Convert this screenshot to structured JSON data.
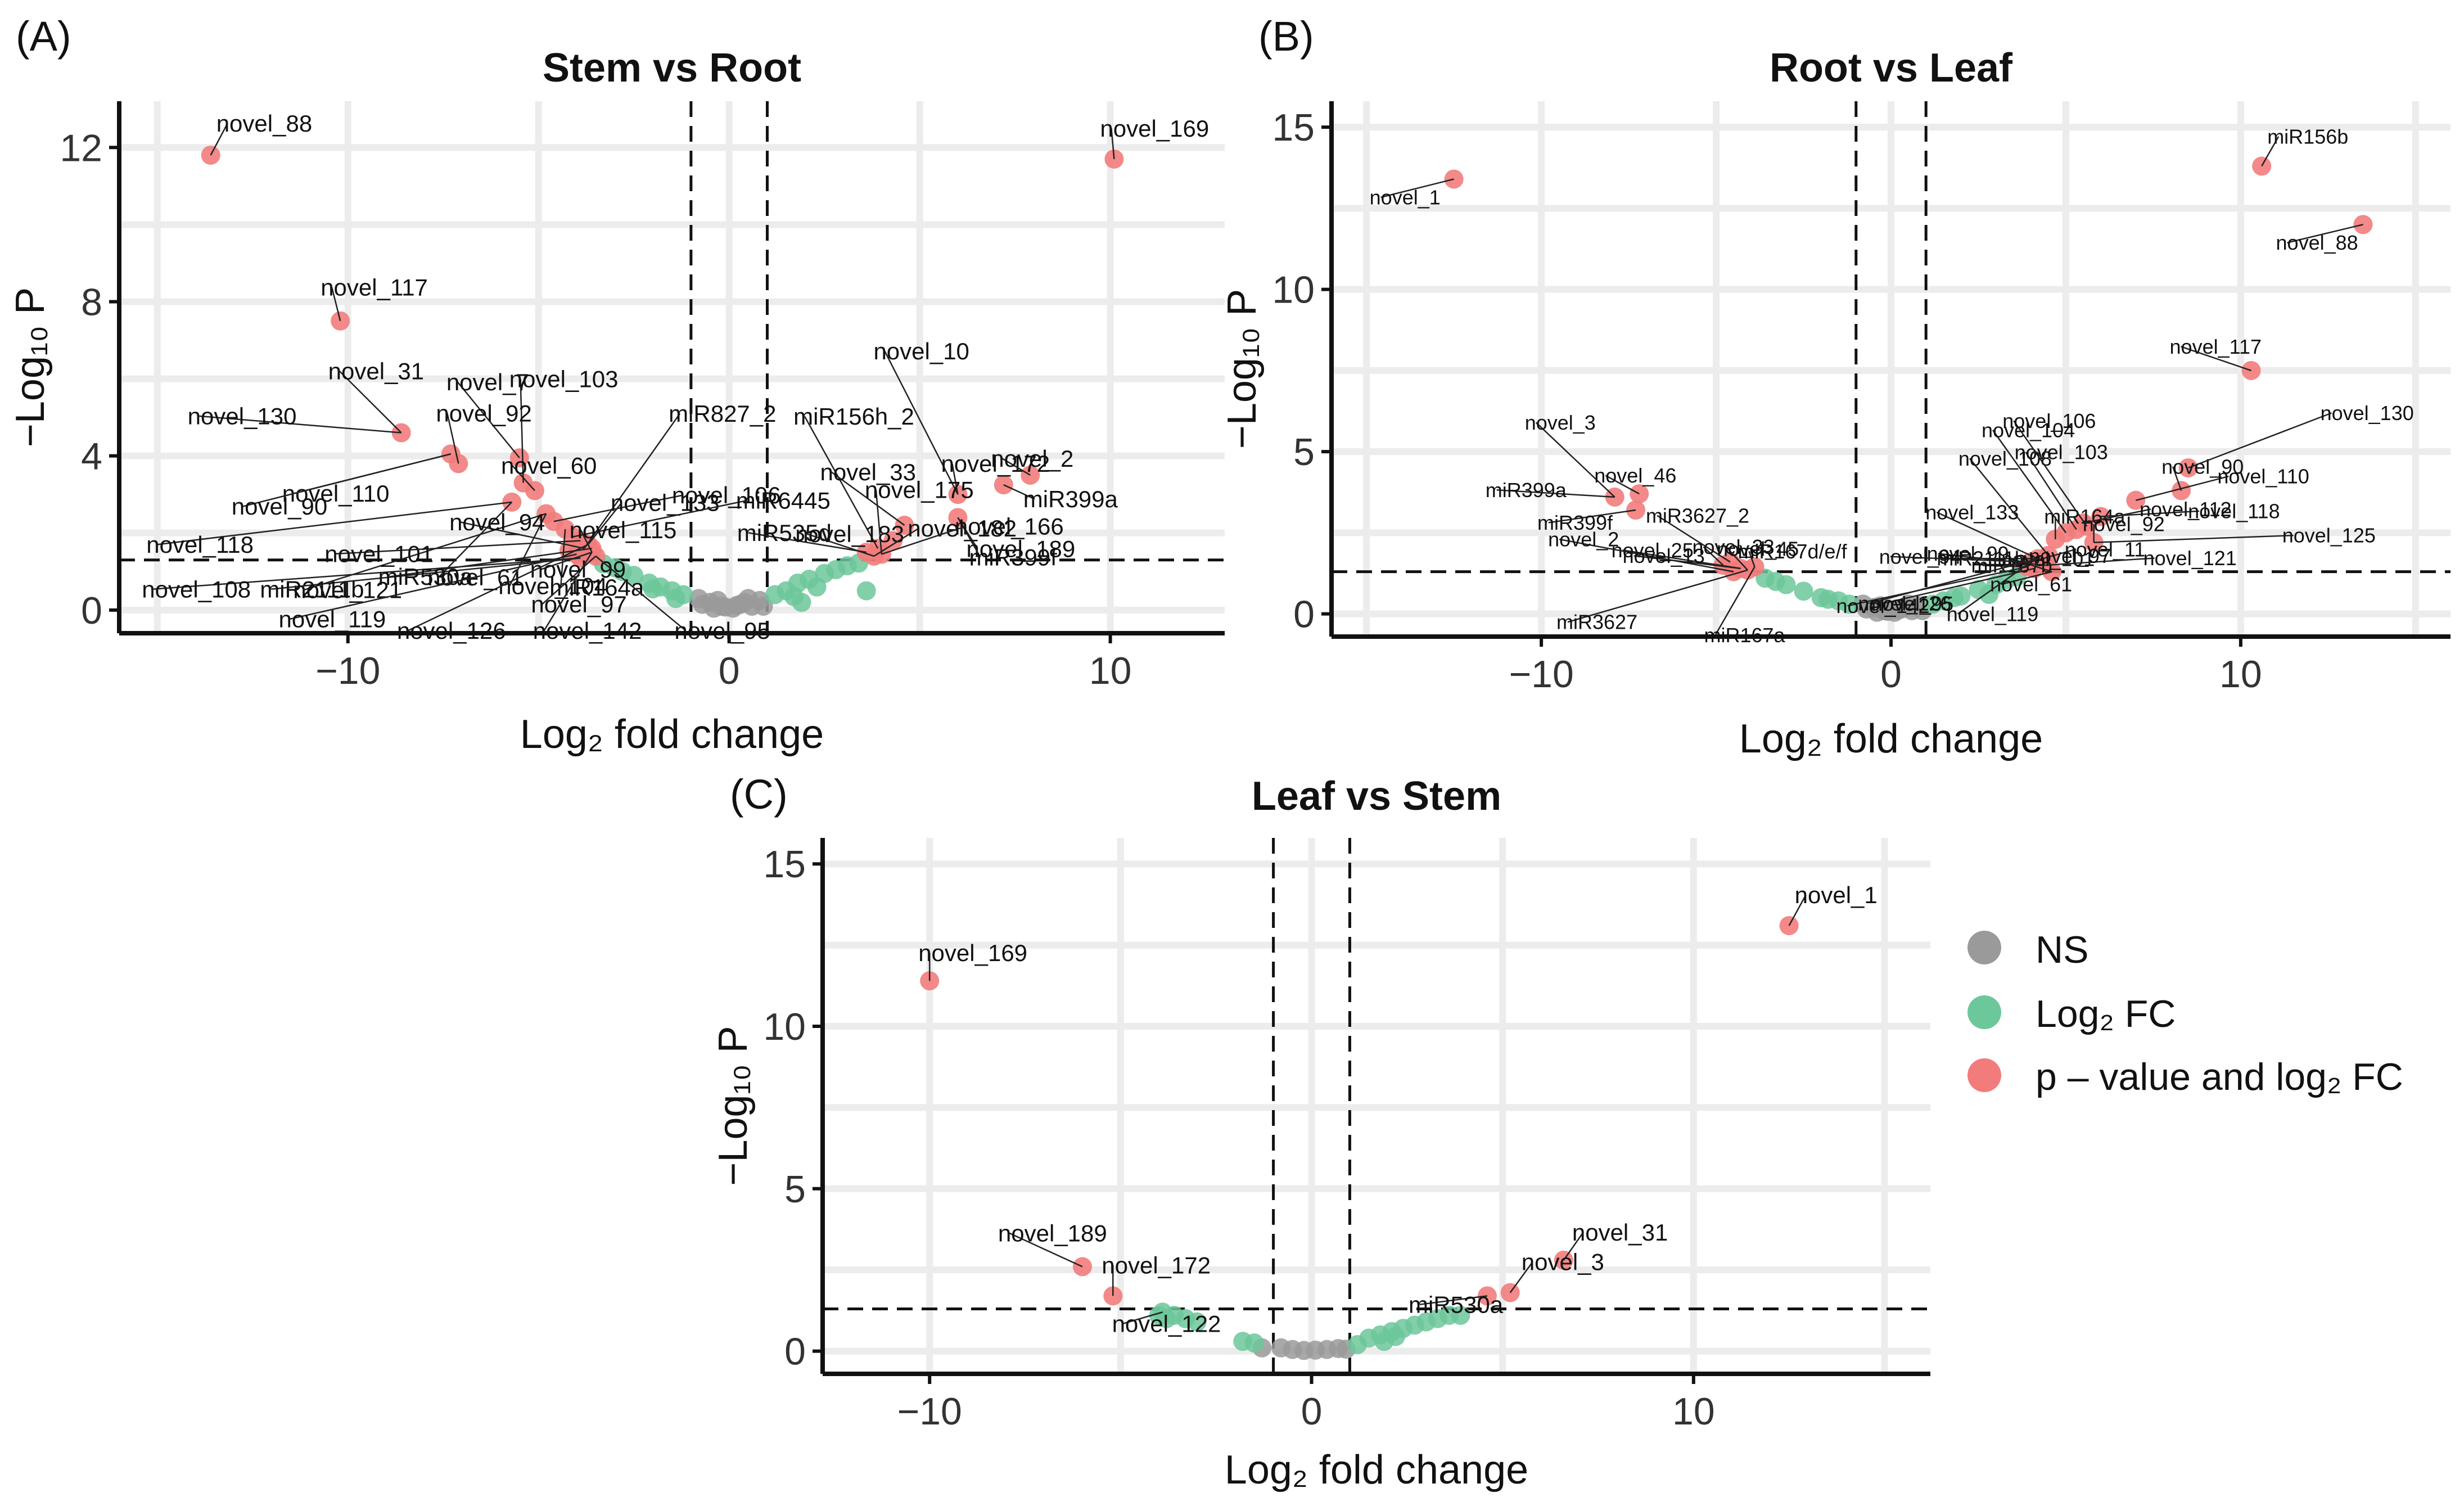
{
  "legend": {
    "items": [
      {
        "label": "NS",
        "color": "#9a9a9a"
      },
      {
        "label": "Log₂ FC",
        "color": "#6cc79a"
      },
      {
        "label": "p – value and log₂ FC",
        "color": "#f27c7c"
      }
    ]
  },
  "chart_data": [
    {
      "type": "scatter",
      "panel": "(A)",
      "title": "Stem vs Root",
      "xlabel": "Log₂ fold change",
      "ylabel": "−Log₁₀ P",
      "xlim": [
        -16,
        13
      ],
      "ylim": [
        -0.6,
        13.2
      ],
      "xticks": [
        -10,
        0,
        10
      ],
      "xtick_labels": [
        "−10",
        "0",
        "10"
      ],
      "yticks": [
        0,
        4,
        8,
        12
      ],
      "ytick_labels": [
        "0",
        "4",
        "8",
        "12"
      ],
      "fc_cutoff": 1,
      "p_cutoff": 1.3,
      "ns_points": [
        [
          -0.2,
          0.1
        ],
        [
          0.1,
          0.05
        ],
        [
          0.3,
          0.15
        ],
        [
          -0.5,
          0.2
        ],
        [
          0.6,
          0.1
        ],
        [
          -0.8,
          0.3
        ],
        [
          0.8,
          0.25
        ],
        [
          -0.4,
          0.05
        ],
        [
          0.2,
          0.12
        ],
        [
          -0.1,
          0.08
        ],
        [
          0.5,
          0.3
        ],
        [
          -0.7,
          0.15
        ],
        [
          0.4,
          0.2
        ],
        [
          -0.3,
          0.25
        ],
        [
          0.9,
          0.1
        ]
      ],
      "fc_points": [
        [
          -1.2,
          0.4
        ],
        [
          -1.5,
          0.5
        ],
        [
          -1.8,
          0.6
        ],
        [
          -2.1,
          0.7
        ],
        [
          -2.5,
          0.9
        ],
        [
          -2.8,
          1.0
        ],
        [
          -3.0,
          1.1
        ],
        [
          -3.3,
          1.2
        ],
        [
          -1.4,
          0.3
        ],
        [
          -2.0,
          0.55
        ],
        [
          1.2,
          0.4
        ],
        [
          1.5,
          0.5
        ],
        [
          1.8,
          0.7
        ],
        [
          2.1,
          0.8
        ],
        [
          2.5,
          0.95
        ],
        [
          2.8,
          1.05
        ],
        [
          3.1,
          1.15
        ],
        [
          3.4,
          1.22
        ],
        [
          1.7,
          0.35
        ],
        [
          2.3,
          0.6
        ],
        [
          3.6,
          0.5
        ],
        [
          1.9,
          0.2
        ]
      ],
      "sig_points": [
        [
          -13.6,
          11.8
        ],
        [
          10.1,
          11.7
        ],
        [
          -10.2,
          7.5
        ],
        [
          -8.6,
          4.6
        ],
        [
          -7.3,
          4.05
        ],
        [
          -7.1,
          3.8
        ],
        [
          -5.5,
          3.95
        ],
        [
          -5.4,
          3.3
        ],
        [
          -5.1,
          3.1
        ],
        [
          -5.7,
          2.8
        ],
        [
          -4.8,
          2.5
        ],
        [
          -4.6,
          2.3
        ],
        [
          -4.3,
          2.1
        ],
        [
          -4.1,
          1.9
        ],
        [
          -3.9,
          1.8
        ],
        [
          -3.8,
          1.6
        ],
        [
          -3.7,
          1.7
        ],
        [
          -3.6,
          1.5
        ],
        [
          -4.0,
          1.45
        ],
        [
          -3.5,
          1.4
        ],
        [
          -3.9,
          1.35
        ],
        [
          -3.6,
          1.6
        ],
        [
          -4.2,
          1.55
        ],
        [
          4.3,
          1.8
        ],
        [
          4.6,
          2.2
        ],
        [
          6.0,
          3.0
        ],
        [
          7.2,
          3.25
        ],
        [
          7.9,
          3.5
        ],
        [
          6.0,
          2.4
        ],
        [
          3.9,
          1.6
        ],
        [
          3.6,
          1.5
        ],
        [
          3.8,
          1.4
        ],
        [
          4.0,
          1.45
        ]
      ],
      "labels": [
        {
          "text": "novel_88",
          "x": -13.6,
          "y": 11.8
        },
        {
          "text": "novel_169",
          "x": 10.1,
          "y": 11.7
        },
        {
          "text": "novel_117",
          "x": -10.2,
          "y": 7.5
        },
        {
          "text": "novel_130",
          "x": -8.6,
          "y": 4.6
        },
        {
          "text": "novel_31",
          "x": -8.6,
          "y": 4.6
        },
        {
          "text": "novel_7",
          "x": -5.5,
          "y": 3.95
        },
        {
          "text": "novel_103",
          "x": -5.4,
          "y": 3.3
        },
        {
          "text": "novel_110",
          "x": -7.3,
          "y": 4.05
        },
        {
          "text": "novel_92",
          "x": -7.1,
          "y": 3.8
        },
        {
          "text": "novel_60",
          "x": -5.1,
          "y": 3.1
        },
        {
          "text": "miR827_2",
          "x": -3.8,
          "y": 1.6
        },
        {
          "text": "miR156h_2",
          "x": 3.9,
          "y": 1.6
        },
        {
          "text": "novel_10",
          "x": 6.0,
          "y": 3.0
        },
        {
          "text": "novel_90",
          "x": -7.3,
          "y": 4.05
        },
        {
          "text": "novel_61",
          "x": -5.7,
          "y": 2.8
        },
        {
          "text": "novel_104",
          "x": -4.8,
          "y": 2.5
        },
        {
          "text": "novel_106",
          "x": -4.6,
          "y": 2.3
        },
        {
          "text": "novel_133",
          "x": -3.7,
          "y": 1.7
        },
        {
          "text": "novel_172",
          "x": 6.0,
          "y": 3.0
        },
        {
          "text": "novel_2",
          "x": 7.9,
          "y": 3.5
        },
        {
          "text": "novel_118",
          "x": -5.7,
          "y": 2.8
        },
        {
          "text": "miR164a",
          "x": -4.3,
          "y": 2.1
        },
        {
          "text": "miR6445",
          "x": -4.1,
          "y": 1.9
        },
        {
          "text": "novel_33",
          "x": 4.6,
          "y": 2.2
        },
        {
          "text": "miR399a",
          "x": 7.2,
          "y": 3.25
        },
        {
          "text": "novel_121",
          "x": -4.8,
          "y": 2.5
        },
        {
          "text": "novel_189",
          "x": 6.0,
          "y": 2.4
        },
        {
          "text": "novel_101",
          "x": -3.9,
          "y": 1.8
        },
        {
          "text": "novel_94",
          "x": -3.8,
          "y": 1.6
        },
        {
          "text": "novel_115",
          "x": -3.6,
          "y": 1.5
        },
        {
          "text": "miR535d",
          "x": 3.6,
          "y": 1.5
        },
        {
          "text": "miR399f",
          "x": 6.0,
          "y": 2.4
        },
        {
          "text": "novel_108",
          "x": -3.9,
          "y": 1.35
        },
        {
          "text": "miR2111b",
          "x": -3.9,
          "y": 1.35
        },
        {
          "text": "miR530a",
          "x": -3.6,
          "y": 1.6
        },
        {
          "text": "novel_97",
          "x": -3.5,
          "y": 1.4
        },
        {
          "text": "novel_99",
          "x": -3.6,
          "y": 1.5
        },
        {
          "text": "novel_183",
          "x": 3.8,
          "y": 1.4
        },
        {
          "text": "novel_175",
          "x": 4.0,
          "y": 1.45
        },
        {
          "text": "novel_119",
          "x": -4.0,
          "y": 1.45
        },
        {
          "text": "novel_126",
          "x": -3.7,
          "y": 1.7
        },
        {
          "text": "novel_142",
          "x": -3.6,
          "y": 1.5
        },
        {
          "text": "novel_95",
          "x": -3.5,
          "y": 1.4
        },
        {
          "text": "novel_182",
          "x": 3.8,
          "y": 1.4
        },
        {
          "text": "novel_166",
          "x": 4.0,
          "y": 1.45
        }
      ]
    },
    {
      "type": "scatter",
      "panel": "(B)",
      "title": "Root vs Leaf",
      "xlabel": "Log₂ fold change",
      "ylabel": "−Log₁₀ P",
      "xlim": [
        -16,
        16
      ],
      "ylim": [
        -0.7,
        15.8
      ],
      "xticks": [
        -10,
        0,
        10
      ],
      "xtick_labels": [
        "−10",
        "0",
        "10"
      ],
      "yticks": [
        0,
        5,
        10,
        15
      ],
      "ytick_labels": [
        "0",
        "5",
        "10",
        "15"
      ],
      "fc_cutoff": 1,
      "p_cutoff": 1.3,
      "ns_points": [
        [
          -0.2,
          0.1
        ],
        [
          0.1,
          0.05
        ],
        [
          0.3,
          0.15
        ],
        [
          -0.5,
          0.2
        ],
        [
          0.6,
          0.1
        ],
        [
          -0.8,
          0.3
        ],
        [
          0.8,
          0.25
        ],
        [
          -0.4,
          0.05
        ],
        [
          0.2,
          0.12
        ],
        [
          -0.1,
          0.08
        ],
        [
          0.5,
          0.3
        ],
        [
          -0.7,
          0.15
        ],
        [
          0.4,
          0.2
        ],
        [
          -0.3,
          0.25
        ],
        [
          0.9,
          0.1
        ]
      ],
      "fc_points": [
        [
          -1.2,
          0.3
        ],
        [
          -1.5,
          0.4
        ],
        [
          -2.0,
          0.5
        ],
        [
          -2.5,
          0.7
        ],
        [
          -3.0,
          0.9
        ],
        [
          -3.3,
          1.0
        ],
        [
          -3.6,
          1.1
        ],
        [
          -1.8,
          0.45
        ],
        [
          1.2,
          0.3
        ],
        [
          1.5,
          0.4
        ],
        [
          2.0,
          0.55
        ],
        [
          2.5,
          0.75
        ],
        [
          3.0,
          0.9
        ],
        [
          3.3,
          1.05
        ],
        [
          3.6,
          1.15
        ],
        [
          1.8,
          0.5
        ],
        [
          2.8,
          0.6
        ]
      ],
      "sig_points": [
        [
          -12.5,
          13.4
        ],
        [
          10.6,
          13.8
        ],
        [
          13.5,
          12.0
        ],
        [
          10.3,
          7.5
        ],
        [
          -7.9,
          3.6
        ],
        [
          -7.2,
          3.7
        ],
        [
          -7.3,
          3.2
        ],
        [
          -4.8,
          1.5
        ],
        [
          -4.6,
          1.6
        ],
        [
          -4.3,
          1.4
        ],
        [
          -4.1,
          1.35
        ],
        [
          -3.9,
          1.45
        ],
        [
          -4.5,
          1.3
        ],
        [
          4.0,
          1.6
        ],
        [
          4.2,
          1.7
        ],
        [
          4.5,
          1.8
        ],
        [
          4.7,
          2.3
        ],
        [
          5.0,
          2.5
        ],
        [
          5.3,
          2.6
        ],
        [
          5.6,
          2.7
        ],
        [
          6.0,
          3.0
        ],
        [
          7.0,
          3.5
        ],
        [
          8.5,
          4.5
        ],
        [
          8.3,
          3.8
        ],
        [
          4.4,
          1.5
        ],
        [
          4.1,
          1.4
        ],
        [
          3.9,
          1.45
        ],
        [
          4.6,
          1.3
        ],
        [
          5.8,
          2.2
        ],
        [
          5.5,
          2.8
        ]
      ],
      "labels": [
        {
          "text": "novel_1",
          "x": -12.5,
          "y": 13.4
        },
        {
          "text": "miR156b",
          "x": 10.6,
          "y": 13.8
        },
        {
          "text": "novel_88",
          "x": 13.5,
          "y": 12.0
        },
        {
          "text": "novel_117",
          "x": 10.3,
          "y": 7.5
        },
        {
          "text": "novel_3",
          "x": -7.9,
          "y": 3.6
        },
        {
          "text": "novel_46",
          "x": -7.2,
          "y": 3.7
        },
        {
          "text": "miR399a",
          "x": -7.9,
          "y": 3.6
        },
        {
          "text": "miR3627_2",
          "x": -4.6,
          "y": 1.6
        },
        {
          "text": "novel_33",
          "x": -4.8,
          "y": 1.5
        },
        {
          "text": "miR399f",
          "x": -7.3,
          "y": 3.2
        },
        {
          "text": "novel_25",
          "x": -4.3,
          "y": 1.4
        },
        {
          "text": "novel_45",
          "x": -4.1,
          "y": 1.35
        },
        {
          "text": "novel_2",
          "x": -4.5,
          "y": 1.3
        },
        {
          "text": "novel_13",
          "x": -4.3,
          "y": 1.4
        },
        {
          "text": "miR167d/e/f",
          "x": -3.9,
          "y": 1.45
        },
        {
          "text": "miR3627",
          "x": -4.1,
          "y": 1.35
        },
        {
          "text": "miR167a",
          "x": -3.9,
          "y": 1.45
        },
        {
          "text": "miR167b",
          "x": 3.9,
          "y": 1.45
        },
        {
          "text": "novel_11",
          "x": 4.0,
          "y": 1.6
        },
        {
          "text": "novel_95",
          "x": 4.1,
          "y": 1.4
        },
        {
          "text": "novel_133",
          "x": 4.2,
          "y": 1.7
        },
        {
          "text": "novel_99",
          "x": 4.4,
          "y": 1.5
        },
        {
          "text": "novel_108",
          "x": 4.5,
          "y": 1.8
        },
        {
          "text": "miR164a",
          "x": 4.7,
          "y": 2.3
        },
        {
          "text": "novel_61",
          "x": 4.6,
          "y": 1.3
        },
        {
          "text": "novel_104",
          "x": 5.0,
          "y": 2.5
        },
        {
          "text": "novel_103",
          "x": 5.3,
          "y": 2.6
        },
        {
          "text": "novel_106",
          "x": 5.6,
          "y": 2.7
        },
        {
          "text": "novel_92",
          "x": 5.8,
          "y": 2.2
        },
        {
          "text": "novel_90",
          "x": 8.3,
          "y": 3.8
        },
        {
          "text": "novel_130",
          "x": 8.5,
          "y": 4.5
        },
        {
          "text": "novel_110",
          "x": 7.0,
          "y": 3.5
        },
        {
          "text": "novel_118",
          "x": 6.0,
          "y": 3.0
        },
        {
          "text": "novel_112",
          "x": 5.5,
          "y": 2.8
        },
        {
          "text": "novel_125",
          "x": 5.8,
          "y": 2.2
        },
        {
          "text": "novel_101",
          "x": 4.6,
          "y": 1.3
        },
        {
          "text": "novel_121",
          "x": 4.4,
          "y": 1.5
        },
        {
          "text": "novel_97",
          "x": 4.1,
          "y": 1.4
        },
        {
          "text": "miR2111b",
          "x": 4.2,
          "y": 1.7
        },
        {
          "text": "novel_94",
          "x": 4.0,
          "y": 1.6
        },
        {
          "text": "novel_142",
          "x": 3.9,
          "y": 1.45
        },
        {
          "text": "novel_126",
          "x": 4.2,
          "y": 1.7
        },
        {
          "text": "novel_119",
          "x": 4.0,
          "y": 1.6
        }
      ]
    },
    {
      "type": "scatter",
      "panel": "(C)",
      "title": "Leaf vs Stem",
      "xlabel": "Log₂ fold change",
      "ylabel": "−Log₁₀ P",
      "xlim": [
        -12.8,
        16.2
      ],
      "ylim": [
        -0.7,
        15.8
      ],
      "xticks": [
        -10,
        0,
        10
      ],
      "xtick_labels": [
        "−10",
        "0",
        "10"
      ],
      "yticks": [
        0,
        5,
        10,
        15
      ],
      "ytick_labels": [
        "0",
        "5",
        "10",
        "15"
      ],
      "fc_cutoff": 1,
      "p_cutoff": 1.3,
      "ns_points": [
        [
          -0.5,
          0.05
        ],
        [
          -0.2,
          0.02
        ],
        [
          0.1,
          0.03
        ],
        [
          0.4,
          0.05
        ],
        [
          0.7,
          0.08
        ],
        [
          -0.8,
          0.1
        ],
        [
          0.9,
          0.06
        ],
        [
          -1.3,
          0.1
        ]
      ],
      "fc_points": [
        [
          -3.9,
          1.2
        ],
        [
          -3.6,
          1.1
        ],
        [
          -3.3,
          1.0
        ],
        [
          -3.0,
          0.9
        ],
        [
          -3.8,
          1.0
        ],
        [
          -4.0,
          1.1
        ],
        [
          -1.8,
          0.3
        ],
        [
          -1.5,
          0.25
        ],
        [
          1.2,
          0.2
        ],
        [
          1.5,
          0.4
        ],
        [
          1.8,
          0.5
        ],
        [
          2.1,
          0.6
        ],
        [
          2.4,
          0.7
        ],
        [
          2.7,
          0.8
        ],
        [
          3.0,
          0.9
        ],
        [
          3.3,
          1.0
        ],
        [
          3.6,
          1.1
        ],
        [
          3.9,
          1.1
        ],
        [
          1.9,
          0.3
        ],
        [
          2.2,
          0.45
        ]
      ],
      "sig_points": [
        [
          12.5,
          13.1
        ],
        [
          -10.0,
          11.4
        ],
        [
          -6.0,
          2.6
        ],
        [
          -5.2,
          1.7
        ],
        [
          6.6,
          2.8
        ],
        [
          5.2,
          1.8
        ],
        [
          4.6,
          1.7
        ]
      ],
      "labels": [
        {
          "text": "novel_1",
          "x": 12.5,
          "y": 13.1
        },
        {
          "text": "novel_169",
          "x": -10.0,
          "y": 11.4
        },
        {
          "text": "novel_189",
          "x": -6.0,
          "y": 2.6
        },
        {
          "text": "novel_172",
          "x": -5.2,
          "y": 1.7
        },
        {
          "text": "novel_122",
          "x": -3.9,
          "y": 1.2
        },
        {
          "text": "novel_31",
          "x": 6.6,
          "y": 2.8
        },
        {
          "text": "novel_3",
          "x": 5.2,
          "y": 1.8
        },
        {
          "text": "miR530a",
          "x": 4.6,
          "y": 1.7
        }
      ]
    }
  ]
}
